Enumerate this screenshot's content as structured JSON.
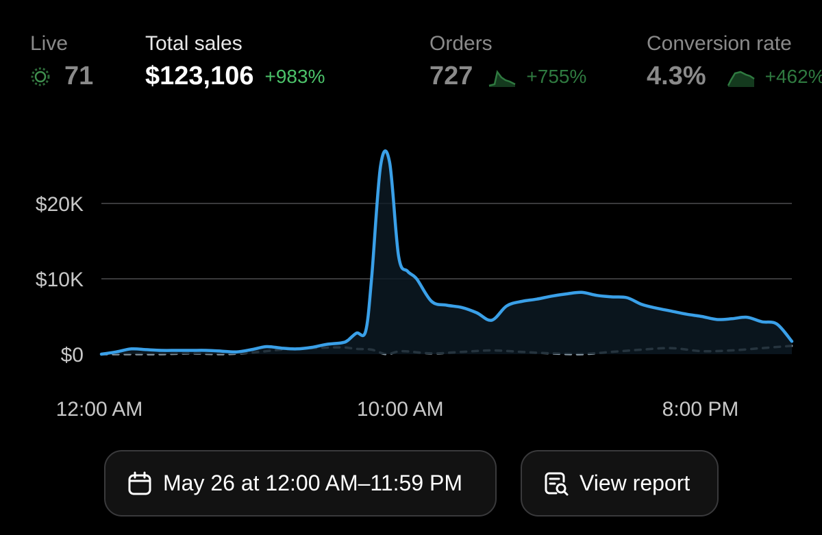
{
  "metrics": {
    "live": {
      "label": "Live",
      "value": "71"
    },
    "total_sales": {
      "label": "Total sales",
      "value": "$123,106",
      "delta": "+983%"
    },
    "orders": {
      "label": "Orders",
      "value": "727",
      "delta": "+755%"
    },
    "conversion": {
      "label": "Conversion rate",
      "value": "4.3%",
      "delta": "+462%"
    }
  },
  "colors": {
    "accent_line": "#3aa0e8",
    "comparison_line": "#8a9aa6",
    "positive": "#4cc36a",
    "grid": "#3a3a3c"
  },
  "chart_data": {
    "type": "line",
    "y_ticks": [
      "$20K",
      "$10K",
      "$0"
    ],
    "y_tick_values": [
      20000,
      10000,
      0
    ],
    "ylim": [
      0,
      30000
    ],
    "x_ticks": [
      "12:00 AM",
      "10:00 AM",
      "8:00 PM"
    ],
    "x_tick_values": [
      0,
      10,
      20
    ],
    "xlim": [
      0,
      23
    ],
    "grid": true,
    "series": [
      {
        "key": "current",
        "style": "solid",
        "x": [
          0,
          0.5,
          1,
          1.5,
          2,
          2.5,
          3,
          3.5,
          4,
          4.5,
          5,
          5.5,
          6,
          6.5,
          7,
          7.5,
          8,
          8.2,
          8.5,
          8.8,
          9,
          9.3,
          9.6,
          9.9,
          10.2,
          10.5,
          11,
          11.5,
          12,
          12.5,
          13,
          13.5,
          14,
          14.5,
          15,
          15.5,
          16,
          16.5,
          17,
          17.5,
          18,
          18.5,
          19,
          19.5,
          20,
          20.5,
          21,
          21.5,
          22,
          22.5,
          23
        ],
        "values": [
          0,
          300,
          700,
          600,
          500,
          500,
          500,
          500,
          400,
          300,
          600,
          1000,
          800,
          700,
          900,
          1300,
          1500,
          1800,
          2800,
          3000,
          10000,
          25000,
          25500,
          13000,
          11000,
          10000,
          7000,
          6500,
          6200,
          5500,
          4500,
          6400,
          7000,
          7300,
          7700,
          8000,
          8200,
          7800,
          7600,
          7500,
          6600,
          6100,
          5700,
          5300,
          5000,
          4600,
          4700,
          4900,
          4300,
          4000,
          1700
        ]
      },
      {
        "key": "comparison",
        "style": "dashed",
        "x": [
          0,
          1,
          2,
          3,
          4,
          5,
          6,
          7,
          8,
          8.5,
          9,
          9.5,
          10,
          11,
          12,
          13,
          14,
          15,
          16,
          17,
          18,
          19,
          20,
          21,
          22,
          23
        ],
        "values": [
          0,
          0,
          0,
          100,
          0,
          200,
          600,
          800,
          900,
          700,
          600,
          0,
          400,
          100,
          300,
          500,
          300,
          100,
          0,
          300,
          600,
          800,
          400,
          500,
          800,
          1100
        ]
      }
    ]
  },
  "buttons": {
    "date_range": "May 26 at 12:00 AM–11:59 PM",
    "view_report": "View report"
  },
  "icons": {
    "live": "live-pulse-icon",
    "calendar": "calendar-icon",
    "report": "report-search-icon"
  }
}
